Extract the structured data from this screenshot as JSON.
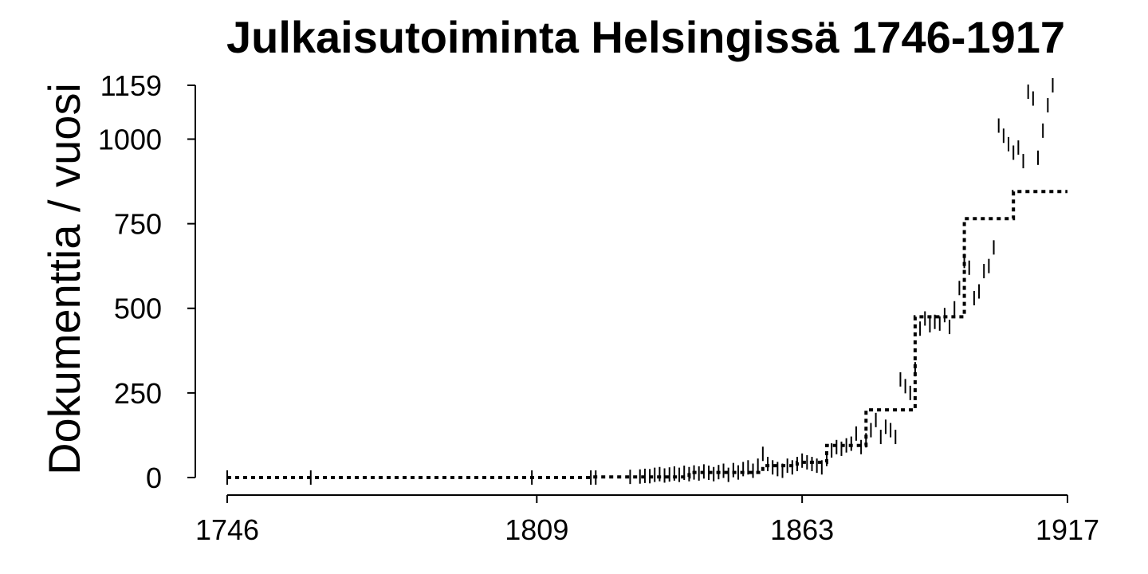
{
  "chart_data": {
    "type": "line",
    "title": "Julkaisutoiminta Helsingissä 1746-1917",
    "xlabel": "",
    "ylabel": "Dokumenttia / vuosi",
    "xlim": [
      1746,
      1917
    ],
    "ylim": [
      0,
      1159
    ],
    "x_ticks": [
      1746,
      1809,
      1863,
      1917
    ],
    "y_ticks": [
      0,
      250,
      500,
      750,
      1000,
      1159
    ],
    "grid": false,
    "legend": "none",
    "series": [
      {
        "style": "vertical tick marks (yearly values)",
        "points": [
          [
            1746,
            0
          ],
          [
            1763,
            0
          ],
          [
            1808,
            0
          ],
          [
            1820,
            0
          ],
          [
            1821,
            0
          ],
          [
            1828,
            2
          ],
          [
            1830,
            3
          ],
          [
            1831,
            5
          ],
          [
            1832,
            4
          ],
          [
            1833,
            8
          ],
          [
            1834,
            10
          ],
          [
            1835,
            6
          ],
          [
            1836,
            9
          ],
          [
            1837,
            12
          ],
          [
            1838,
            8
          ],
          [
            1839,
            14
          ],
          [
            1840,
            10
          ],
          [
            1841,
            15
          ],
          [
            1842,
            12
          ],
          [
            1843,
            18
          ],
          [
            1844,
            14
          ],
          [
            1845,
            10
          ],
          [
            1846,
            16
          ],
          [
            1847,
            20
          ],
          [
            1848,
            8
          ],
          [
            1849,
            22
          ],
          [
            1850,
            15
          ],
          [
            1851,
            25
          ],
          [
            1852,
            30
          ],
          [
            1853,
            20
          ],
          [
            1854,
            35
          ],
          [
            1855,
            70
          ],
          [
            1856,
            40
          ],
          [
            1857,
            30
          ],
          [
            1858,
            25
          ],
          [
            1859,
            20
          ],
          [
            1860,
            35
          ],
          [
            1861,
            30
          ],
          [
            1862,
            40
          ],
          [
            1863,
            50
          ],
          [
            1864,
            45
          ],
          [
            1865,
            40
          ],
          [
            1866,
            35
          ],
          [
            1867,
            30
          ],
          [
            1868,
            55
          ],
          [
            1869,
            80
          ],
          [
            1870,
            90
          ],
          [
            1871,
            85
          ],
          [
            1872,
            95
          ],
          [
            1873,
            100
          ],
          [
            1874,
            130
          ],
          [
            1875,
            90
          ],
          [
            1876,
            110
          ],
          [
            1877,
            140
          ],
          [
            1878,
            170
          ],
          [
            1879,
            120
          ],
          [
            1880,
            150
          ],
          [
            1881,
            140
          ],
          [
            1882,
            120
          ],
          [
            1883,
            290
          ],
          [
            1884,
            270
          ],
          [
            1885,
            250
          ],
          [
            1886,
            320
          ],
          [
            1887,
            440
          ],
          [
            1888,
            470
          ],
          [
            1889,
            450
          ],
          [
            1890,
            460
          ],
          [
            1891,
            455
          ],
          [
            1892,
            480
          ],
          [
            1893,
            445
          ],
          [
            1894,
            500
          ],
          [
            1895,
            560
          ],
          [
            1896,
            640
          ],
          [
            1897,
            620
          ],
          [
            1898,
            530
          ],
          [
            1899,
            550
          ],
          [
            1900,
            610
          ],
          [
            1901,
            625
          ],
          [
            1902,
            680
          ],
          [
            1903,
            1040
          ],
          [
            1904,
            1010
          ],
          [
            1905,
            985
          ],
          [
            1906,
            960
          ],
          [
            1907,
            975
          ],
          [
            1908,
            935
          ],
          [
            1909,
            1140
          ],
          [
            1910,
            1120
          ],
          [
            1911,
            945
          ],
          [
            1912,
            1025
          ],
          [
            1913,
            1100
          ],
          [
            1914,
            1159
          ]
        ]
      },
      {
        "style": "dotted step line (period average)",
        "points": [
          [
            1746,
            0
          ],
          [
            1820,
            0
          ],
          [
            1820,
            2
          ],
          [
            1840,
            2
          ],
          [
            1840,
            15
          ],
          [
            1855,
            15
          ],
          [
            1855,
            35
          ],
          [
            1862,
            35
          ],
          [
            1862,
            45
          ],
          [
            1868,
            45
          ],
          [
            1868,
            95
          ],
          [
            1876,
            95
          ],
          [
            1876,
            200
          ],
          [
            1886,
            200
          ],
          [
            1886,
            475
          ],
          [
            1896,
            475
          ],
          [
            1896,
            765
          ],
          [
            1906,
            765
          ],
          [
            1906,
            845
          ],
          [
            1917,
            845
          ]
        ]
      }
    ]
  }
}
